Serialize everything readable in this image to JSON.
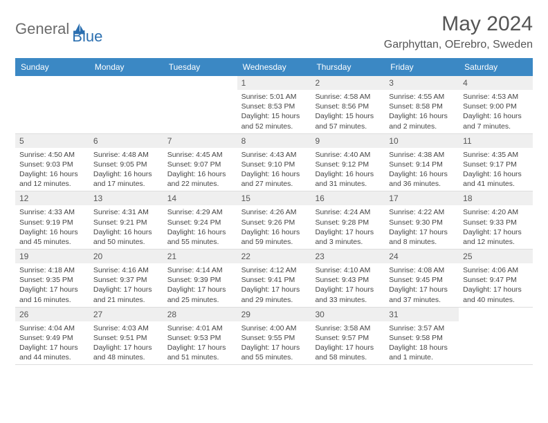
{
  "brand": {
    "part1": "General",
    "part2": "Blue"
  },
  "title": "May 2024",
  "location": "Garphyttan, OErebro, Sweden",
  "colors": {
    "header_bar": "#3b88c4",
    "day_num_bg": "#efefef",
    "text": "#555555",
    "brand_gray": "#6b6b6b",
    "brand_blue": "#2b6fb0"
  },
  "weekdays": [
    "Sunday",
    "Monday",
    "Tuesday",
    "Wednesday",
    "Thursday",
    "Friday",
    "Saturday"
  ],
  "weeks": [
    [
      null,
      null,
      null,
      {
        "n": "1",
        "sr": "5:01 AM",
        "ss": "8:53 PM",
        "dl": "15 hours and 52 minutes."
      },
      {
        "n": "2",
        "sr": "4:58 AM",
        "ss": "8:56 PM",
        "dl": "15 hours and 57 minutes."
      },
      {
        "n": "3",
        "sr": "4:55 AM",
        "ss": "8:58 PM",
        "dl": "16 hours and 2 minutes."
      },
      {
        "n": "4",
        "sr": "4:53 AM",
        "ss": "9:00 PM",
        "dl": "16 hours and 7 minutes."
      }
    ],
    [
      {
        "n": "5",
        "sr": "4:50 AM",
        "ss": "9:03 PM",
        "dl": "16 hours and 12 minutes."
      },
      {
        "n": "6",
        "sr": "4:48 AM",
        "ss": "9:05 PM",
        "dl": "16 hours and 17 minutes."
      },
      {
        "n": "7",
        "sr": "4:45 AM",
        "ss": "9:07 PM",
        "dl": "16 hours and 22 minutes."
      },
      {
        "n": "8",
        "sr": "4:43 AM",
        "ss": "9:10 PM",
        "dl": "16 hours and 27 minutes."
      },
      {
        "n": "9",
        "sr": "4:40 AM",
        "ss": "9:12 PM",
        "dl": "16 hours and 31 minutes."
      },
      {
        "n": "10",
        "sr": "4:38 AM",
        "ss": "9:14 PM",
        "dl": "16 hours and 36 minutes."
      },
      {
        "n": "11",
        "sr": "4:35 AM",
        "ss": "9:17 PM",
        "dl": "16 hours and 41 minutes."
      }
    ],
    [
      {
        "n": "12",
        "sr": "4:33 AM",
        "ss": "9:19 PM",
        "dl": "16 hours and 45 minutes."
      },
      {
        "n": "13",
        "sr": "4:31 AM",
        "ss": "9:21 PM",
        "dl": "16 hours and 50 minutes."
      },
      {
        "n": "14",
        "sr": "4:29 AM",
        "ss": "9:24 PM",
        "dl": "16 hours and 55 minutes."
      },
      {
        "n": "15",
        "sr": "4:26 AM",
        "ss": "9:26 PM",
        "dl": "16 hours and 59 minutes."
      },
      {
        "n": "16",
        "sr": "4:24 AM",
        "ss": "9:28 PM",
        "dl": "17 hours and 3 minutes."
      },
      {
        "n": "17",
        "sr": "4:22 AM",
        "ss": "9:30 PM",
        "dl": "17 hours and 8 minutes."
      },
      {
        "n": "18",
        "sr": "4:20 AM",
        "ss": "9:33 PM",
        "dl": "17 hours and 12 minutes."
      }
    ],
    [
      {
        "n": "19",
        "sr": "4:18 AM",
        "ss": "9:35 PM",
        "dl": "17 hours and 16 minutes."
      },
      {
        "n": "20",
        "sr": "4:16 AM",
        "ss": "9:37 PM",
        "dl": "17 hours and 21 minutes."
      },
      {
        "n": "21",
        "sr": "4:14 AM",
        "ss": "9:39 PM",
        "dl": "17 hours and 25 minutes."
      },
      {
        "n": "22",
        "sr": "4:12 AM",
        "ss": "9:41 PM",
        "dl": "17 hours and 29 minutes."
      },
      {
        "n": "23",
        "sr": "4:10 AM",
        "ss": "9:43 PM",
        "dl": "17 hours and 33 minutes."
      },
      {
        "n": "24",
        "sr": "4:08 AM",
        "ss": "9:45 PM",
        "dl": "17 hours and 37 minutes."
      },
      {
        "n": "25",
        "sr": "4:06 AM",
        "ss": "9:47 PM",
        "dl": "17 hours and 40 minutes."
      }
    ],
    [
      {
        "n": "26",
        "sr": "4:04 AM",
        "ss": "9:49 PM",
        "dl": "17 hours and 44 minutes."
      },
      {
        "n": "27",
        "sr": "4:03 AM",
        "ss": "9:51 PM",
        "dl": "17 hours and 48 minutes."
      },
      {
        "n": "28",
        "sr": "4:01 AM",
        "ss": "9:53 PM",
        "dl": "17 hours and 51 minutes."
      },
      {
        "n": "29",
        "sr": "4:00 AM",
        "ss": "9:55 PM",
        "dl": "17 hours and 55 minutes."
      },
      {
        "n": "30",
        "sr": "3:58 AM",
        "ss": "9:57 PM",
        "dl": "17 hours and 58 minutes."
      },
      {
        "n": "31",
        "sr": "3:57 AM",
        "ss": "9:58 PM",
        "dl": "18 hours and 1 minute."
      },
      null
    ]
  ],
  "labels": {
    "sunrise": "Sunrise: ",
    "sunset": "Sunset: ",
    "daylight": "Daylight: "
  }
}
